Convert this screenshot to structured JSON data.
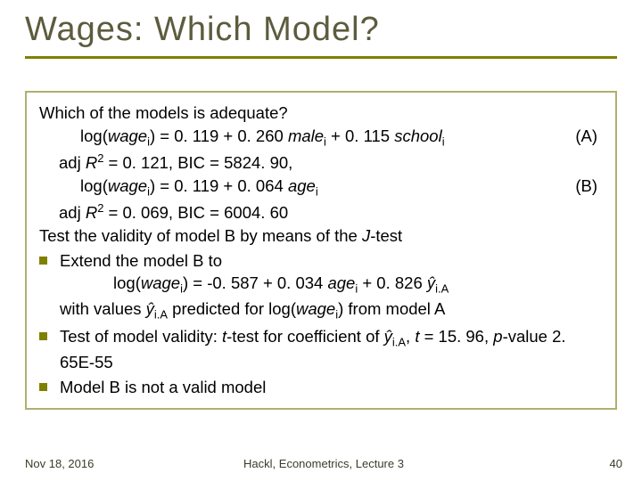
{
  "title": "Wages: Which Model?",
  "box": {
    "q": "Which of the models is adequate?",
    "eqA_pre": "log(",
    "eqA_wage": "wage",
    "eqA_mid1": ") = 0. 119 + 0. 260 ",
    "eqA_male": "male",
    "eqA_mid2": " + 0. 115 ",
    "eqA_school": "school",
    "labelA": "(A)",
    "adjA_pre": "adj ",
    "adjA_R": "R",
    "adjA_rest": " = 0. 121, BIC = 5824. 90,",
    "eqB_pre": "log(",
    "eqB_wage": "wage",
    "eqB_mid1": ") = 0. 119 + 0. 064 ",
    "eqB_age": "age",
    "labelB": "(B)",
    "adjB_pre": "adj ",
    "adjB_R": "R",
    "adjB_rest": " = 0. 069, BIC = 6004. 60",
    "jtest_pre": "Test the validity of model B by means of the ",
    "jtest_J": "J",
    "jtest_post": "-test",
    "b1_line1": "Extend the model B to",
    "b1_eq_pre": "log(",
    "b1_eq_wage": "wage",
    "b1_eq_mid1": ") = -0. 587 + 0. 034 ",
    "b1_eq_age": "age",
    "b1_eq_mid2": "  + 0. 826 ",
    "b1_eq_yhat": "ŷ",
    "b1_line3_pre": "with values ",
    "b1_line3_yhat": "ŷ",
    "b1_line3_mid": " predicted for log(",
    "b1_line3_wage": "wage",
    "b1_line3_post": ") from model A",
    "b2_pre": "Test of model validity: ",
    "b2_t": "t",
    "b2_mid1": "-test for coefficient of ",
    "b2_yhat": "ŷ",
    "b2_mid2": ", ",
    "b2_t2": "t",
    "b2_mid3": " = 15. 96, ",
    "b2_p": "p",
    "b2_post": "-value 2. 65E-55",
    "b3": "Model B is not a valid model",
    "sub_i": "i",
    "sup_2": "2",
    "sub_iA": "i.A"
  },
  "footer": {
    "date": "Nov 18, 2016",
    "center": "Hackl,  Econometrics, Lecture 3",
    "page": "40"
  },
  "colors": {
    "title_color": "#5c5c3e",
    "rule_color": "#808000",
    "box_border": "#aeb06e",
    "bullet_color": "#808000"
  }
}
